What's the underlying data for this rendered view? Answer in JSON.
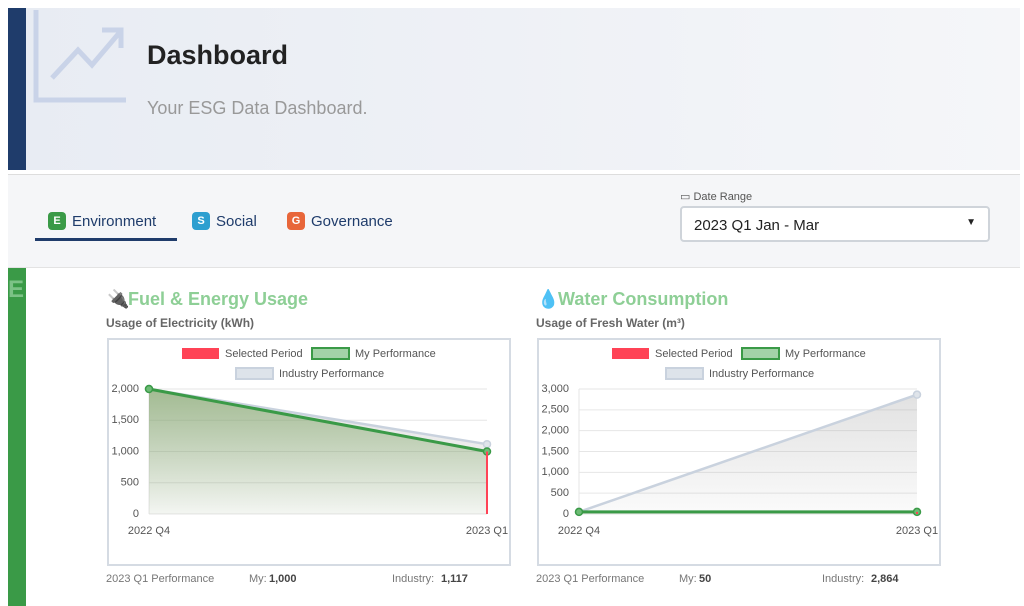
{
  "header": {
    "title": "Dashboard",
    "subtitle": "Your ESG Data Dashboard."
  },
  "tabs": [
    {
      "badge": "E",
      "label": "Environment",
      "color": "#3a9a47"
    },
    {
      "badge": "S",
      "label": "Social",
      "color": "#2d9fd0"
    },
    {
      "badge": "G",
      "label": "Governance",
      "color": "#e8663a"
    }
  ],
  "date_range": {
    "label": "Date Range",
    "value": "2023 Q1 Jan - Mar"
  },
  "section_letter": "E",
  "chart_data": [
    {
      "type": "line",
      "title": "Fuel & Energy Usage",
      "subtitle": "Usage of Electricity (kWh)",
      "categories": [
        "2022 Q4",
        "2023 Q1"
      ],
      "series": [
        {
          "name": "Selected Period",
          "color": "#ff4356",
          "kind": "bar",
          "values": [
            null,
            1000
          ]
        },
        {
          "name": "My Performance",
          "color": "#3a9a47",
          "values": [
            2000,
            1000
          ]
        },
        {
          "name": "Industry Performance",
          "color": "#c9d2de",
          "values": [
            2000,
            1117
          ]
        }
      ],
      "ylim": [
        0,
        2000
      ],
      "yticks": [
        0,
        500,
        {
          "value": 1000,
          "label": "1,000"
        },
        {
          "value": 1500,
          "label": "1,500"
        },
        {
          "value": 2000,
          "label": "2,000"
        }
      ],
      "grid": true,
      "footer": {
        "label": "2023 Q1 Performance",
        "my_label": "My:",
        "my_value": "1,000",
        "industry_label": "Industry:",
        "industry_value": "1,117"
      }
    },
    {
      "type": "line",
      "title": "Water Consumption",
      "subtitle": "Usage of Fresh Water (m³)",
      "categories": [
        "2022 Q4",
        "2023 Q1"
      ],
      "series": [
        {
          "name": "Selected Period",
          "color": "#ff4356",
          "kind": "bar",
          "values": [
            null,
            50
          ]
        },
        {
          "name": "My Performance",
          "color": "#3a9a47",
          "values": [
            50,
            50
          ]
        },
        {
          "name": "Industry Performance",
          "color": "#c9d2de",
          "values": [
            50,
            2864
          ]
        }
      ],
      "ylim": [
        0,
        3000
      ],
      "yticks": [
        0,
        500,
        {
          "value": 1000,
          "label": "1,000"
        },
        {
          "value": 1500,
          "label": "1,500"
        },
        {
          "value": 2000,
          "label": "2,000"
        },
        {
          "value": 2500,
          "label": "2,500"
        },
        {
          "value": 3000,
          "label": "3,000"
        }
      ],
      "grid": true,
      "footer": {
        "label": "2023 Q1 Performance",
        "my_label": "My:",
        "my_value": "50",
        "industry_label": "Industry:",
        "industry_value": "2,864"
      }
    }
  ]
}
